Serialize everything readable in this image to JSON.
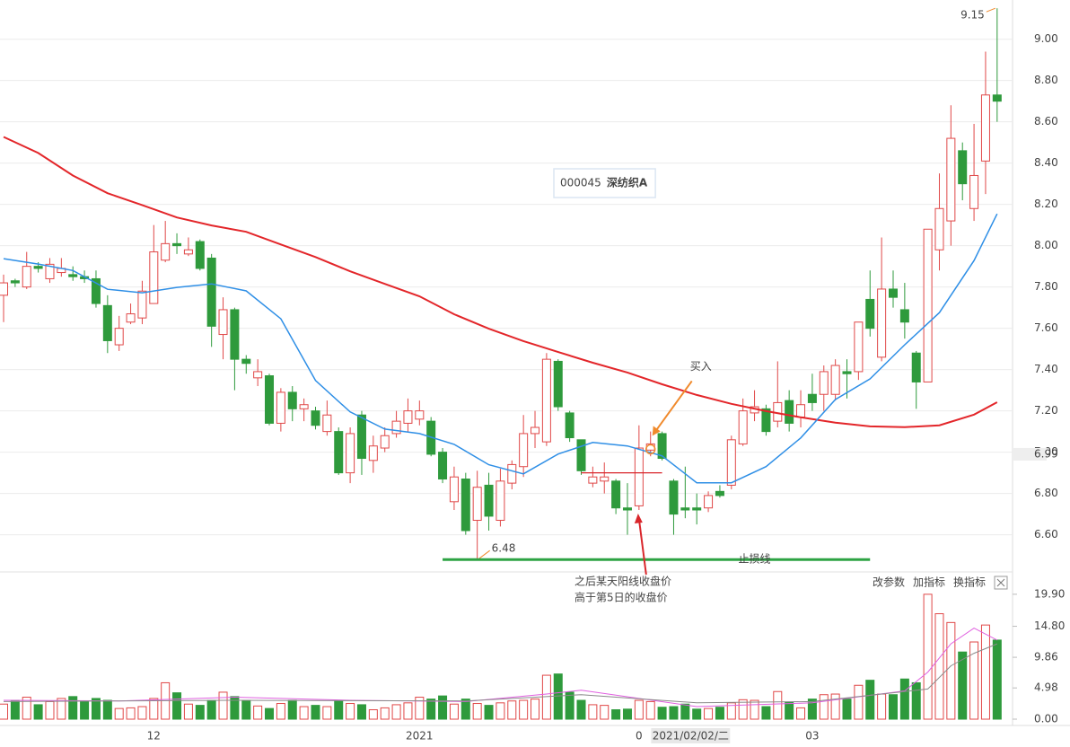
{
  "chart_data": {
    "type": "candlestick",
    "title": {
      "code": "000045",
      "name": "深纺织A"
    },
    "colors": {
      "up": "#e04848",
      "down": "#2e9a3c",
      "ma20": "#2f8fe6",
      "ma60": "#e3262a",
      "vma5": "#e060e0",
      "vma10": "#8a8a8a",
      "grid": "#ececec"
    },
    "ylim": [
      6.42,
      9.19
    ],
    "yticks": [
      {
        "value": 6.6,
        "label": "6.60"
      },
      {
        "value": 6.8,
        "label": "6.80"
      },
      {
        "value": 7,
        "label": "7.00"
      },
      {
        "value": 7.2,
        "label": "7.20"
      },
      {
        "value": 7.4,
        "label": "7.40"
      },
      {
        "value": 7.6,
        "label": "7.60"
      },
      {
        "value": 7.8,
        "label": "7.80"
      },
      {
        "value": 8,
        "label": "8.00"
      },
      {
        "value": 8.2,
        "label": "8.20"
      },
      {
        "value": 8.4,
        "label": "8.40"
      },
      {
        "value": 8.6,
        "label": "8.60"
      },
      {
        "value": 8.8,
        "label": "8.80"
      },
      {
        "value": 9,
        "label": "9.00"
      }
    ],
    "vlim": [
      0,
      20.6
    ],
    "vticks": [
      {
        "value": 0,
        "label": "0.00"
      },
      4.98,
      9.86,
      {
        "value": 14.8,
        "label": "14.80"
      },
      {
        "value": 19.9,
        "label": "19.90"
      }
    ],
    "xticks": [
      {
        "value": 13,
        "label": "12"
      },
      {
        "value": 36,
        "label": "2021"
      },
      {
        "value": 55,
        "label": "0"
      },
      {
        "value": 70,
        "label": "03"
      }
    ],
    "candles": {
      "open": [
        7.76,
        7.83,
        7.8,
        7.9,
        7.84,
        7.87,
        7.86,
        7.85,
        7.84,
        7.71,
        7.52,
        7.63,
        7.65,
        7.72,
        7.93,
        8.01,
        7.96,
        8.02,
        7.94,
        7.57,
        7.69,
        7.45,
        7.36,
        7.37,
        7.14,
        7.29,
        7.21,
        7.2,
        7.1,
        7.1,
        6.9,
        7.18,
        6.96,
        7.02,
        7.09,
        7.14,
        7.16,
        7.15,
        7.0,
        6.76,
        6.87,
        6.67,
        6.84,
        6.67,
        6.85,
        6.93,
        7.09,
        7.05,
        7.44,
        7.19,
        7.06,
        6.85,
        6.86,
        6.86,
        6.73,
        6.74,
        7.01,
        7.09,
        6.86,
        6.73,
        6.73,
        6.73,
        6.81,
        6.84,
        7.04,
        7.19,
        7.21,
        7.15,
        7.25,
        7.17,
        7.28,
        7.28,
        7.28,
        7.39,
        7.39,
        7.74,
        7.46,
        7.79,
        7.69,
        7.48,
        7.34,
        7.98,
        8.12,
        8.46,
        8.18,
        8.41,
        8.73
      ],
      "high": [
        7.86,
        7.84,
        7.97,
        7.92,
        7.94,
        7.94,
        7.9,
        7.88,
        7.88,
        7.76,
        7.66,
        7.72,
        7.83,
        8.1,
        8.12,
        8.06,
        8.04,
        8.03,
        7.96,
        7.75,
        7.7,
        7.47,
        7.45,
        7.38,
        7.31,
        7.32,
        7.26,
        7.22,
        7.25,
        7.12,
        7.12,
        7.2,
        7.08,
        7.12,
        7.2,
        7.26,
        7.25,
        7.17,
        7.02,
        6.93,
        6.9,
        6.91,
        6.9,
        6.92,
        6.96,
        7.18,
        7.2,
        7.48,
        7.45,
        7.2,
        7.06,
        6.93,
        6.95,
        6.87,
        6.85,
        7.13,
        7.1,
        7.1,
        6.87,
        6.93,
        6.8,
        6.81,
        6.84,
        7.08,
        7.26,
        7.3,
        7.23,
        7.44,
        7.3,
        7.3,
        7.38,
        7.42,
        7.45,
        7.45,
        7.63,
        7.88,
        8.04,
        7.88,
        7.82,
        7.49,
        8.08,
        8.35,
        8.68,
        8.5,
        8.59,
        8.94,
        9.15
      ],
      "low": [
        7.63,
        7.8,
        7.79,
        7.87,
        7.82,
        7.85,
        7.83,
        7.82,
        7.7,
        7.48,
        7.49,
        7.62,
        7.62,
        7.72,
        7.92,
        7.96,
        7.95,
        7.88,
        7.51,
        7.45,
        7.3,
        7.38,
        7.32,
        7.13,
        7.1,
        7.15,
        7.15,
        7.11,
        7.08,
        6.89,
        6.85,
        6.89,
        6.9,
        7.0,
        7.07,
        7.1,
        7.13,
        6.98,
        6.85,
        6.72,
        6.6,
        6.48,
        6.62,
        6.64,
        6.82,
        6.88,
        7.02,
        7.03,
        7.2,
        7.05,
        6.89,
        6.83,
        6.8,
        6.7,
        6.6,
        6.72,
        6.98,
        6.96,
        6.6,
        6.68,
        6.65,
        6.71,
        6.78,
        6.82,
        7.03,
        7.15,
        7.08,
        7.12,
        7.1,
        7.12,
        7.2,
        7.2,
        7.25,
        7.26,
        7.35,
        7.56,
        7.44,
        7.7,
        7.55,
        7.21,
        7.34,
        7.88,
        8.0,
        8.22,
        8.12,
        8.25,
        8.6
      ],
      "close": [
        7.82,
        7.82,
        7.9,
        7.89,
        7.91,
        7.89,
        7.85,
        7.84,
        7.72,
        7.54,
        7.6,
        7.67,
        7.78,
        7.97,
        8.01,
        8.0,
        7.98,
        7.89,
        7.61,
        7.69,
        7.45,
        7.43,
        7.39,
        7.14,
        7.29,
        7.21,
        7.23,
        7.13,
        7.18,
        6.9,
        7.09,
        6.97,
        7.03,
        7.08,
        7.15,
        7.2,
        7.2,
        6.99,
        6.87,
        6.88,
        6.62,
        6.83,
        6.69,
        6.86,
        6.94,
        7.09,
        7.12,
        7.45,
        7.22,
        7.07,
        6.91,
        6.88,
        6.88,
        6.73,
        6.72,
        7.02,
        7.04,
        6.97,
        6.7,
        6.72,
        6.72,
        6.79,
        6.79,
        7.06,
        7.2,
        7.22,
        7.1,
        7.24,
        7.14,
        7.23,
        7.24,
        7.39,
        7.42,
        7.38,
        7.63,
        7.6,
        7.79,
        7.75,
        7.63,
        7.34,
        8.08,
        8.18,
        8.52,
        8.3,
        8.34,
        8.73,
        8.7
      ]
    },
    "volume": [
      2.4,
      3.0,
      3.5,
      2.3,
      2.8,
      3.3,
      3.6,
      2.8,
      3.3,
      3.0,
      1.7,
      1.8,
      2.0,
      3.3,
      5.8,
      4.2,
      2.4,
      2.2,
      3.0,
      4.3,
      3.6,
      3.0,
      2.1,
      1.7,
      2.5,
      3.0,
      2.0,
      2.2,
      2.0,
      3.0,
      2.5,
      2.3,
      1.5,
      1.8,
      2.3,
      2.6,
      3.5,
      3.2,
      3.7,
      2.4,
      3.2,
      2.5,
      2.2,
      2.6,
      2.9,
      3.0,
      3.2,
      7.0,
      7.2,
      4.3,
      3.0,
      2.3,
      2.2,
      1.5,
      1.6,
      3.0,
      2.8,
      1.9,
      2.0,
      2.4,
      1.6,
      1.7,
      1.9,
      2.6,
      3.1,
      3.0,
      2.0,
      4.4,
      2.7,
      1.8,
      3.2,
      3.9,
      4.0,
      3.2,
      5.4,
      6.2,
      4.0,
      3.9,
      6.4,
      5.8,
      19.9,
      16.8,
      15.4,
      10.7,
      12.3,
      15.0,
      12.6
    ],
    "ma20": {
      "x": [
        0,
        3,
        6,
        9,
        12,
        15,
        18,
        21,
        24,
        27,
        30,
        33,
        36,
        39,
        42,
        45,
        48,
        51,
        54,
        57,
        60,
        63,
        66,
        69,
        72,
        75,
        78,
        81,
        84,
        86
      ],
      "values": [
        7.937,
        7.911,
        7.88,
        7.789,
        7.772,
        7.798,
        7.815,
        7.781,
        7.646,
        7.347,
        7.195,
        7.112,
        7.09,
        7.038,
        6.939,
        6.895,
        6.991,
        7.047,
        7.03,
        6.982,
        6.852,
        6.852,
        6.93,
        7.069,
        7.255,
        7.355,
        7.52,
        7.676,
        7.928,
        8.154
      ]
    },
    "ma60": {
      "x": [
        0,
        3,
        6,
        9,
        12,
        15,
        18,
        21,
        24,
        27,
        30,
        33,
        36,
        39,
        42,
        45,
        48,
        51,
        54,
        57,
        60,
        63,
        66,
        69,
        72,
        75,
        78,
        81,
        84,
        86
      ],
      "values": [
        8.527,
        8.449,
        8.34,
        8.254,
        8.197,
        8.137,
        8.098,
        8.067,
        8.006,
        7.945,
        7.876,
        7.815,
        7.755,
        7.668,
        7.598,
        7.538,
        7.485,
        7.433,
        7.386,
        7.329,
        7.277,
        7.234,
        7.199,
        7.169,
        7.143,
        7.125,
        7.121,
        7.13,
        7.182,
        7.242
      ]
    },
    "vma5": {
      "x": [
        0,
        10,
        20,
        30,
        40,
        47,
        50,
        55,
        60,
        70,
        78,
        80,
        82,
        84,
        86
      ],
      "values": [
        3.0,
        2.9,
        3.5,
        3.0,
        2.8,
        4.0,
        4.6,
        3.3,
        2.0,
        2.6,
        4.5,
        7.5,
        12.0,
        14.5,
        12.6
      ]
    },
    "vma10": {
      "x": [
        0,
        20,
        40,
        50,
        60,
        70,
        80,
        82,
        84,
        86
      ],
      "values": [
        2.8,
        3.0,
        2.9,
        3.9,
        2.6,
        2.8,
        4.8,
        8.5,
        10.5,
        12.0
      ]
    },
    "high_label": 9.15,
    "low_label": 6.48,
    "buy": {
      "text": "买入",
      "index": 56
    },
    "stop_loss": {
      "text": "止损线",
      "value": 6.48,
      "start": 38,
      "end": 75
    },
    "reference_line": {
      "value": 6.9,
      "start": 50,
      "end": 57
    },
    "note": [
      "之后某天阳线收盘价",
      "高于第5日的收盘价"
    ],
    "crosshair": {
      "price": 6.99,
      "index": 59,
      "date": "2021/02/02/二"
    },
    "toolbar": [
      "改参数",
      "加指标",
      "换指标"
    ]
  }
}
